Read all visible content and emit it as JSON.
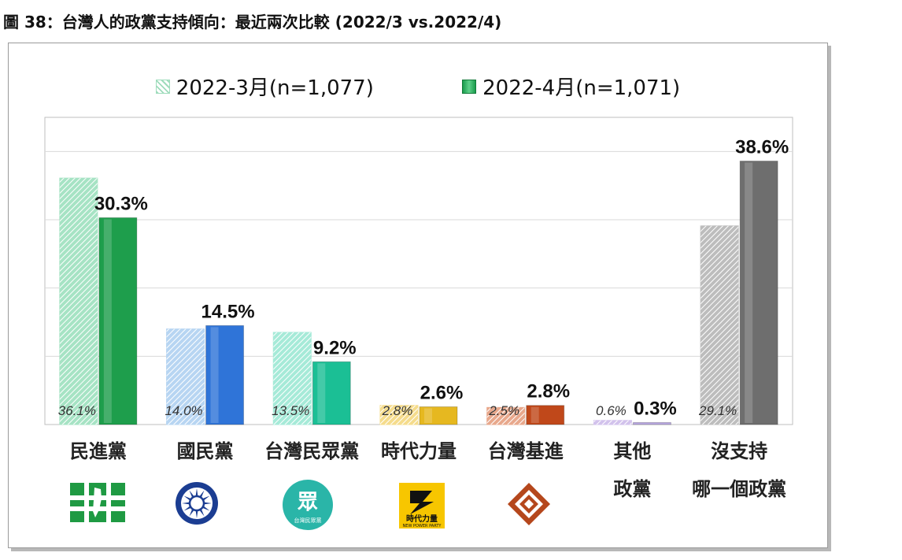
{
  "title": "圖 38：台灣人的政黨支持傾向：最近兩次比較  (2022/3 vs.2022/4)",
  "chart_data": {
    "type": "bar",
    "categories": [
      "民進黨",
      "國民黨",
      "台灣民眾黨",
      "時代力量",
      "台灣基進",
      "其他政黨",
      "沒支持哪一個政黨"
    ],
    "category_lines": [
      [
        "民進黨"
      ],
      [
        "國民黨"
      ],
      [
        "台灣民眾黨"
      ],
      [
        "時代力量"
      ],
      [
        "台灣基進"
      ],
      [
        "其他",
        "政黨"
      ],
      [
        "沒支持",
        "哪一個政黨"
      ]
    ],
    "series": [
      {
        "name": "2022-3月(n=1,077)",
        "values": [
          36.1,
          14.0,
          13.5,
          2.8,
          2.5,
          0.6,
          29.1
        ],
        "labels": [
          "36.1%",
          "14.0%",
          "13.5%",
          "2.8%",
          "2.5%",
          "0.6%",
          "29.1%"
        ],
        "style": "hatched"
      },
      {
        "name": "2022-4月(n=1,071)",
        "values": [
          30.3,
          14.5,
          9.2,
          2.6,
          2.8,
          0.3,
          38.6
        ],
        "labels": [
          "30.3%",
          "14.5%",
          "9.2%",
          "2.6%",
          "2.8%",
          "0.3%",
          "38.6%"
        ],
        "style": "solid"
      }
    ],
    "colors": {
      "prev": [
        "#a6e3c4",
        "#b7d5f2",
        "#a6ead8",
        "#f5dc8c",
        "#e8a88c",
        "#d2c2ec",
        "#bdbdbd"
      ],
      "curr": [
        "#1e9e4c",
        "#2f74d8",
        "#1bbf95",
        "#e6b820",
        "#c0481a",
        "#b8a8e0",
        "#6e6e6e"
      ]
    },
    "ylim": [
      0,
      45
    ],
    "gridlines": [
      10,
      20,
      30,
      40
    ],
    "grid": true,
    "legend_position": "top-center",
    "xlabel": "",
    "ylabel": ""
  },
  "logos": [
    {
      "name": "dpp-logo-icon"
    },
    {
      "name": "kmt-logo-icon"
    },
    {
      "name": "tpp-logo-icon",
      "text": "眾",
      "subtext": "台灣民眾黨"
    },
    {
      "name": "npp-logo-icon",
      "text": "時代力量",
      "subtext": "NEW POWER PARTY"
    },
    {
      "name": "tsp-logo-icon"
    }
  ]
}
